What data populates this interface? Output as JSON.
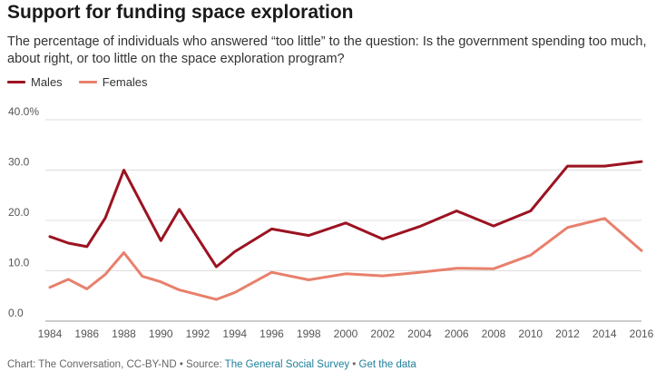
{
  "header": {
    "title": "Support for funding space exploration",
    "subtitle": "The percentage of individuals who answered “too little” to the question: Is the government spending too much, about right, or too little on the space exploration program?"
  },
  "legend": [
    {
      "name": "Males",
      "color": "#9b1321"
    },
    {
      "name": "Females",
      "color": "#e8806c"
    }
  ],
  "footer": {
    "prefix": "Chart: The Conversation, CC-BY-ND • Source: ",
    "source_link": "The General Social Survey",
    "separator": " • ",
    "data_link": "Get the data"
  },
  "chart_data": {
    "type": "line",
    "x": [
      1984,
      1985,
      1986,
      1987,
      1988,
      1989,
      1990,
      1991,
      1993,
      1994,
      1996,
      1998,
      2000,
      2002,
      2004,
      2006,
      2008,
      2010,
      2012,
      2014,
      2016
    ],
    "series": [
      {
        "name": "Males",
        "color": "#9b1321",
        "values": [
          16.8,
          15.5,
          14.8,
          20.5,
          30.0,
          23.0,
          16.0,
          22.2,
          10.8,
          13.8,
          18.3,
          17.0,
          19.5,
          16.3,
          18.8,
          21.9,
          18.9,
          21.9,
          30.8,
          30.8,
          31.7
        ]
      },
      {
        "name": "Females",
        "color": "#e8806c",
        "values": [
          6.7,
          8.3,
          6.4,
          9.3,
          13.6,
          8.9,
          7.8,
          6.2,
          4.3,
          5.7,
          9.7,
          8.2,
          9.4,
          9.0,
          9.7,
          10.5,
          10.4,
          13.1,
          18.6,
          20.4,
          14.0
        ]
      }
    ],
    "x_ticks": [
      1984,
      1986,
      1988,
      1990,
      1992,
      1994,
      1996,
      1998,
      2000,
      2002,
      2004,
      2006,
      2008,
      2010,
      2012,
      2014,
      2016
    ],
    "y_ticks": [
      0,
      10,
      20,
      30,
      40
    ],
    "y_tick_labels": [
      "0.0",
      "10.0",
      "20.0",
      "30.0",
      "40.0%"
    ],
    "xlim": [
      1984,
      2016
    ],
    "ylim": [
      0,
      40
    ],
    "grid": "horizontal",
    "legend_position": "top-left"
  }
}
